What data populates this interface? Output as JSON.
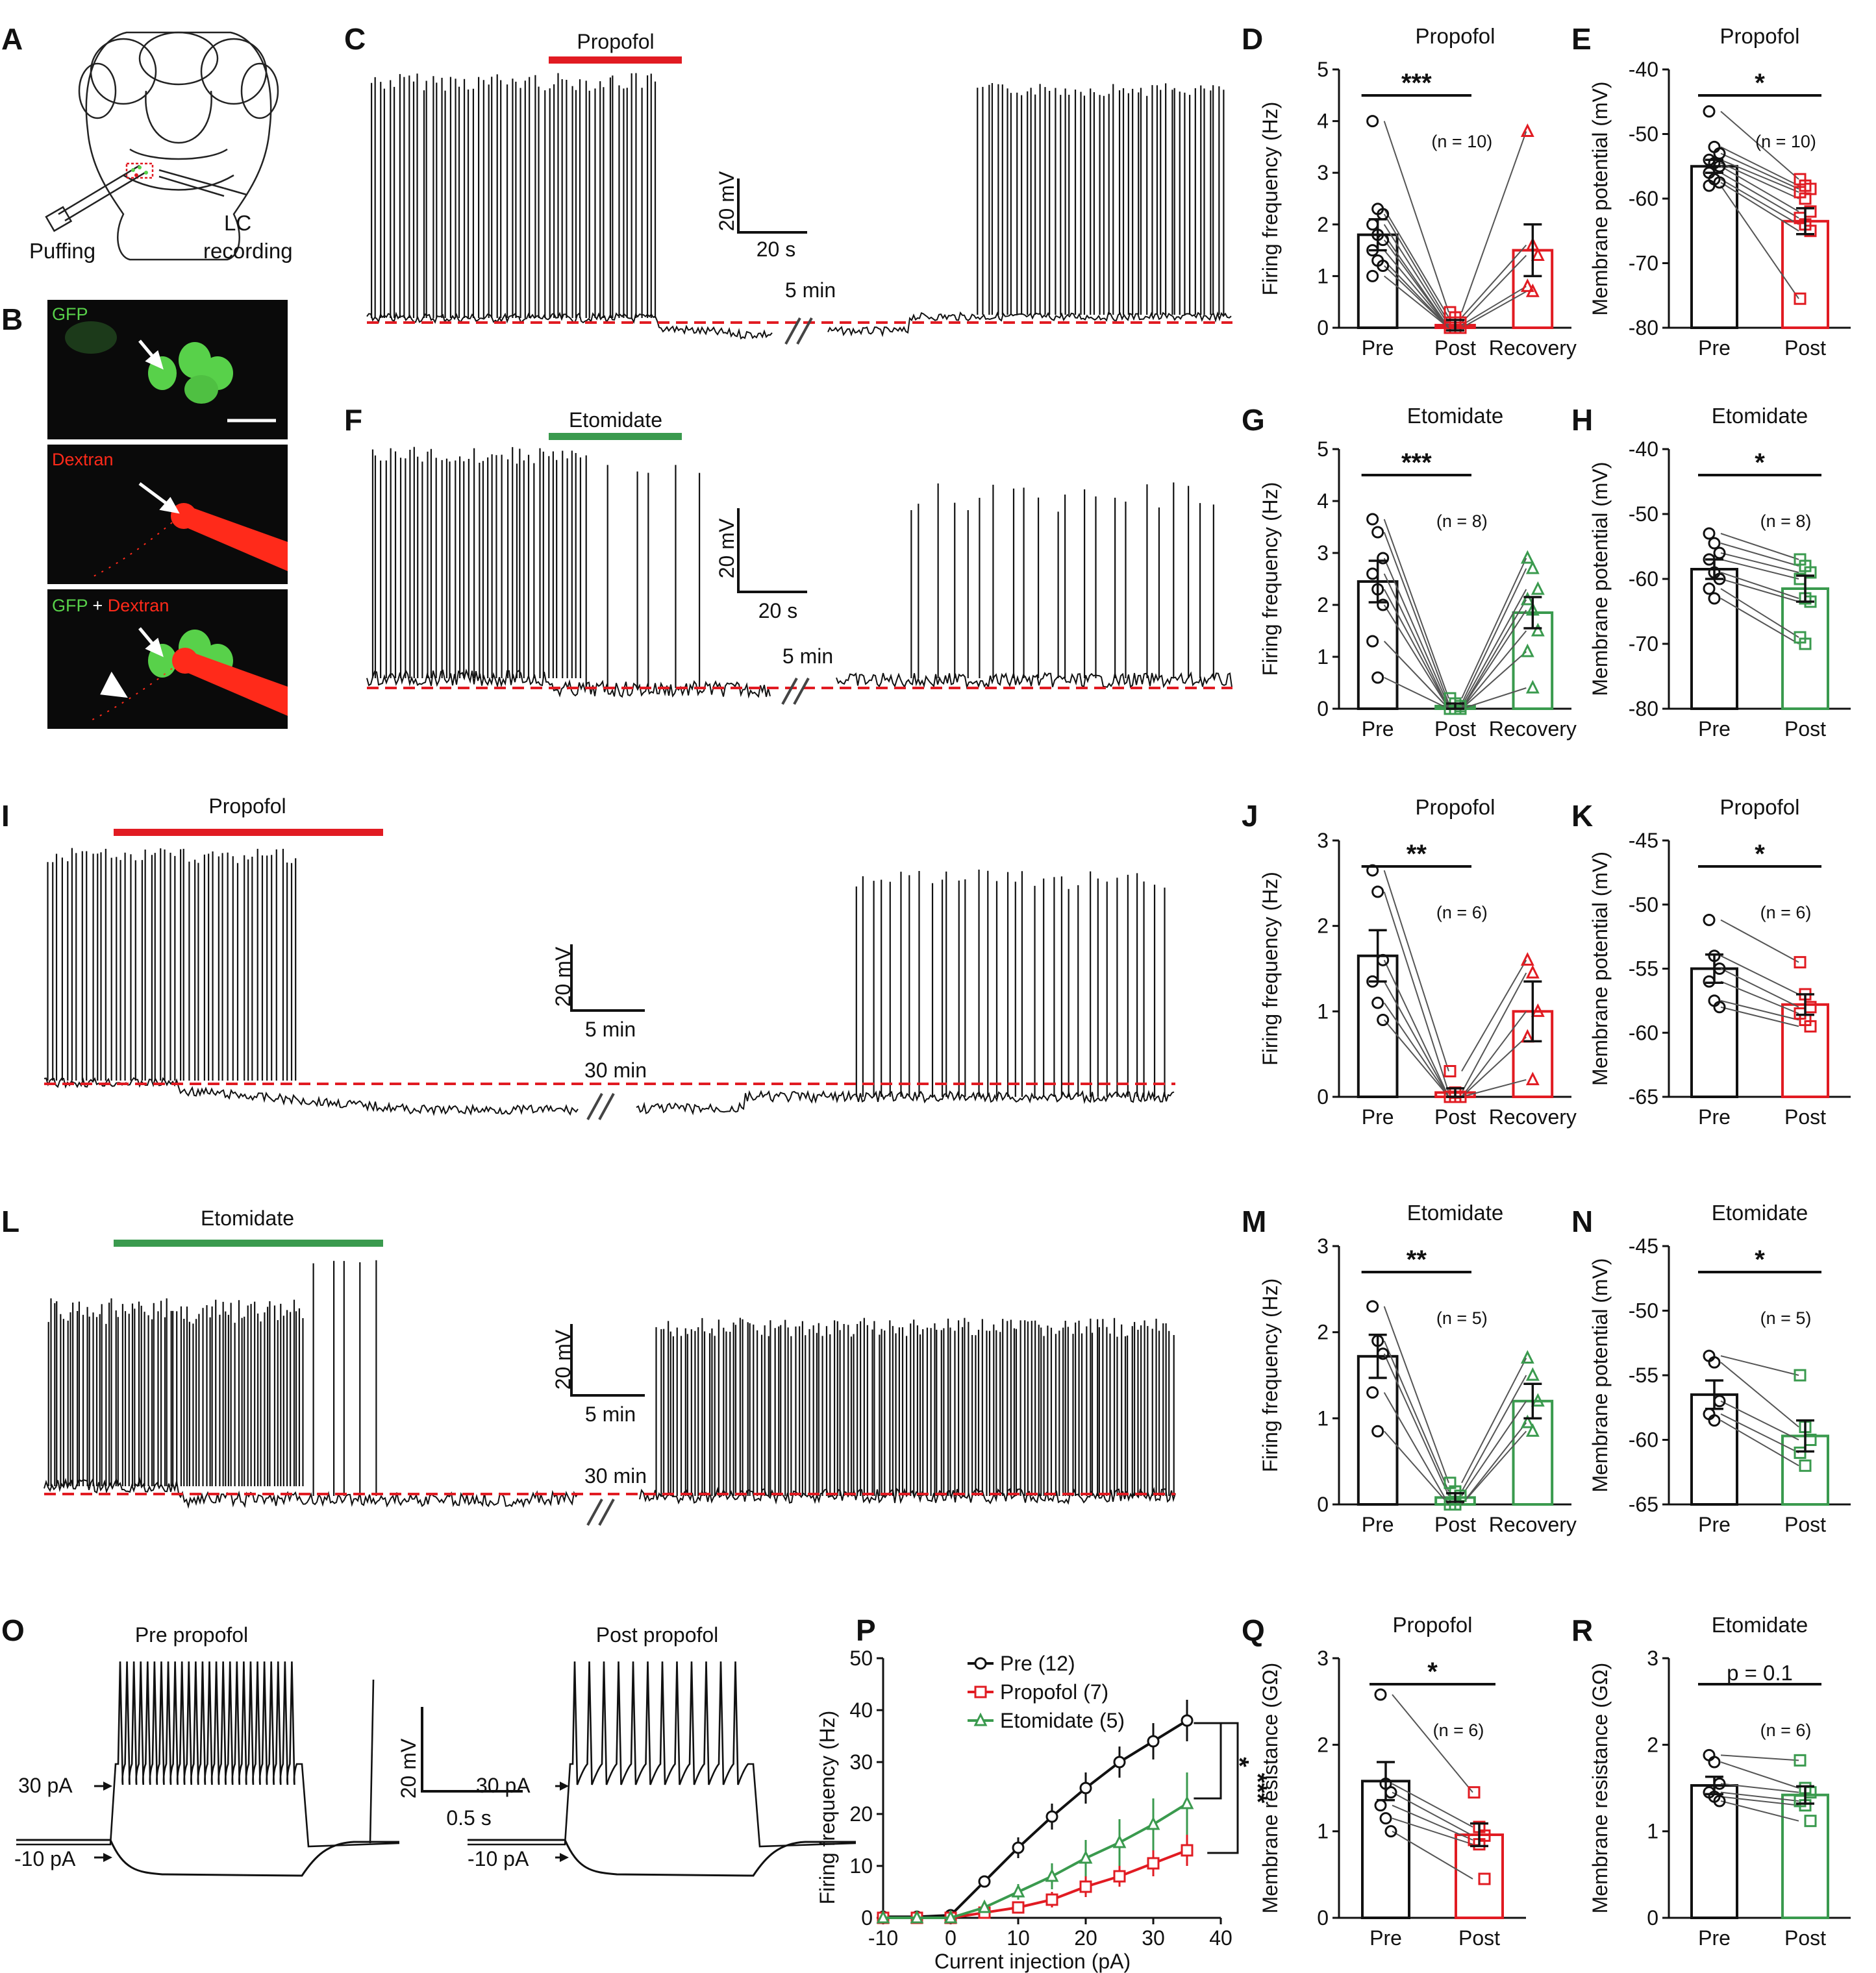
{
  "figure": {
    "colors": {
      "black": "#111111",
      "red": "#e11b22",
      "green": "#3a9a4e",
      "gfp": "#58d14a",
      "dextran": "#ff2a1a"
    },
    "panel_letters": [
      "A",
      "B",
      "C",
      "D",
      "E",
      "F",
      "G",
      "H",
      "I",
      "J",
      "K",
      "L",
      "M",
      "N",
      "O",
      "P",
      "Q",
      "R"
    ],
    "panel_A": {
      "puffing": "Puffing",
      "lc": "LC",
      "recording": "recording"
    },
    "panel_B": {
      "gfp": "GFP",
      "dextran": "Dextran",
      "merge_gfp": "GFP",
      "merge_plus": " + ",
      "merge_dextran": "Dextran"
    },
    "panel_C": {
      "drug": "Propofol",
      "scale_v": "20 mV",
      "scale_t": "20 s",
      "gap": "5 min"
    },
    "panel_F": {
      "drug": "Etomidate",
      "scale_v": "20 mV",
      "scale_t": "20 s",
      "gap": "5 min"
    },
    "panel_I": {
      "drug": "Propofol",
      "scale_v": "20 mV",
      "scale_t": "5 min",
      "gap": "30 min"
    },
    "panel_L": {
      "drug": "Etomidate",
      "scale_v": "20 mV",
      "scale_t": "5 min",
      "gap": "30 min"
    },
    "panel_O": {
      "pre": "Pre propofol",
      "post": "Post propofol",
      "scale_v": "20 mV",
      "scale_t": "0.5 s",
      "i30": "30 pA",
      "i_10": "-10 pA"
    }
  },
  "chart_data": [
    {
      "id": "D",
      "type": "bar",
      "title": "Propofol",
      "ylabel": "Firing frequency (Hz)",
      "categories": [
        "Pre",
        "Post",
        "Recovery"
      ],
      "ylim": [
        0,
        5
      ],
      "yticks": [
        "0",
        "1",
        "2",
        "3",
        "4",
        "5"
      ],
      "values": [
        1.8,
        0.05,
        1.5
      ],
      "errors": [
        0.3,
        0.1,
        0.5
      ],
      "colors": [
        "#111111",
        "#e11b22",
        "#e11b22"
      ],
      "markers": [
        "circle",
        "square",
        "triangle"
      ],
      "significance": "***",
      "n_label": "(n = 10)",
      "points": [
        [
          4.0,
          2.3,
          2.2,
          2.0,
          1.8,
          1.7,
          1.5,
          1.3,
          1.2,
          1.0
        ],
        [
          0.3,
          0.2,
          0.1,
          0.05,
          0.0,
          0.0,
          0.0,
          0.0,
          0.0,
          0.0
        ],
        [
          3.8,
          1.6,
          1.4,
          0.8,
          0.7
        ]
      ]
    },
    {
      "id": "E",
      "type": "bar",
      "title": "Propofol",
      "ylabel": "Membrane potential (mV)",
      "categories": [
        "Pre",
        "Post"
      ],
      "ylim": [
        -80,
        -40
      ],
      "yticks": [
        "-80",
        "-70",
        "-60",
        "-50",
        "-40"
      ],
      "values": [
        -55,
        -63.5
      ],
      "errors": [
        1.0,
        2.0
      ],
      "colors": [
        "#111111",
        "#e11b22"
      ],
      "markers": [
        "circle",
        "square"
      ],
      "significance": "*",
      "n_label": "(n = 10)",
      "points": [
        [
          -46.5,
          -52,
          -53,
          -54,
          -54.5,
          -55,
          -56,
          -57,
          -57.5,
          -58
        ],
        [
          -57,
          -58,
          -58.5,
          -59,
          -60,
          -62,
          -63,
          -64,
          -65,
          -75.5
        ]
      ]
    },
    {
      "id": "G",
      "type": "bar",
      "title": "Etomidate",
      "ylabel": "Firing frequency (Hz)",
      "categories": [
        "Pre",
        "Post",
        "Recovery"
      ],
      "ylim": [
        0,
        5
      ],
      "yticks": [
        "0",
        "1",
        "2",
        "3",
        "4",
        "5"
      ],
      "values": [
        2.45,
        0.05,
        1.85
      ],
      "errors": [
        0.4,
        0.05,
        0.3
      ],
      "colors": [
        "#111111",
        "#3a9a4e",
        "#3a9a4e"
      ],
      "markers": [
        "circle",
        "square",
        "triangle"
      ],
      "significance": "***",
      "n_label": "(n = 8)",
      "points": [
        [
          3.65,
          3.4,
          2.9,
          2.6,
          2.3,
          2.0,
          1.3,
          0.6
        ],
        [
          0.2,
          0.1,
          0.05,
          0.0,
          0.0,
          0.0,
          0.0,
          0.0
        ],
        [
          2.9,
          2.7,
          2.3,
          2.1,
          1.9,
          1.5,
          1.1,
          0.4
        ]
      ]
    },
    {
      "id": "H",
      "type": "bar",
      "title": "Etomidate",
      "ylabel": "Membrane potential (mV)",
      "categories": [
        "Pre",
        "Post"
      ],
      "ylim": [
        -80,
        -40
      ],
      "yticks": [
        "-80",
        "-70",
        "-60",
        "-50",
        "-40"
      ],
      "values": [
        -58.5,
        -61.5
      ],
      "errors": [
        1.5,
        2.0
      ],
      "colors": [
        "#111111",
        "#3a9a4e"
      ],
      "markers": [
        "circle",
        "square"
      ],
      "significance": "*",
      "n_label": "(n = 8)",
      "points": [
        [
          -53,
          -54.5,
          -56,
          -57,
          -59,
          -60,
          -61.5,
          -63
        ],
        [
          -57,
          -58,
          -59,
          -60,
          -63,
          -63.5,
          -69,
          -70
        ]
      ]
    },
    {
      "id": "J",
      "type": "bar",
      "title": "Propofol",
      "ylabel": "Firing frequency (Hz)",
      "categories": [
        "Pre",
        "Post",
        "Recovery"
      ],
      "ylim": [
        0,
        3
      ],
      "yticks": [
        "0",
        "1",
        "2",
        "3"
      ],
      "values": [
        1.65,
        0.05,
        1.0
      ],
      "errors": [
        0.3,
        0.05,
        0.35
      ],
      "colors": [
        "#111111",
        "#e11b22",
        "#e11b22"
      ],
      "markers": [
        "circle",
        "square",
        "triangle"
      ],
      "significance": "**",
      "n_label": "(n = 6)",
      "points": [
        [
          2.65,
          2.4,
          1.6,
          1.35,
          1.1,
          0.9
        ],
        [
          0.3,
          0.05,
          0.0,
          0.0,
          0.0,
          0.0
        ],
        [
          1.6,
          1.45,
          1.0,
          0.7,
          0.2
        ]
      ]
    },
    {
      "id": "K",
      "type": "bar",
      "title": "Propofol",
      "ylabel": "Membrane potential (mV)",
      "categories": [
        "Pre",
        "Post"
      ],
      "ylim": [
        -65,
        -45
      ],
      "yticks": [
        "-65",
        "-60",
        "-55",
        "-50",
        "-45"
      ],
      "values": [
        -55,
        -57.8
      ],
      "errors": [
        1.1,
        0.8
      ],
      "colors": [
        "#111111",
        "#e11b22"
      ],
      "markers": [
        "circle",
        "square"
      ],
      "significance": "*",
      "n_label": "(n = 6)",
      "points": [
        [
          -51.2,
          -54,
          -55,
          -56,
          -57.5,
          -58
        ],
        [
          -54.5,
          -57,
          -58,
          -58.5,
          -59,
          -59.5
        ]
      ]
    },
    {
      "id": "M",
      "type": "bar",
      "title": "Etomidate",
      "ylabel": "Firing frequency (Hz)",
      "categories": [
        "Pre",
        "Post",
        "Recovery"
      ],
      "ylim": [
        0,
        3
      ],
      "yticks": [
        "0",
        "1",
        "2",
        "3"
      ],
      "values": [
        1.72,
        0.08,
        1.2
      ],
      "errors": [
        0.25,
        0.05,
        0.2
      ],
      "colors": [
        "#111111",
        "#3a9a4e",
        "#3a9a4e"
      ],
      "markers": [
        "circle",
        "square",
        "triangle"
      ],
      "significance": "**",
      "n_label": "(n = 5)",
      "points": [
        [
          2.3,
          1.9,
          1.75,
          1.3,
          0.85
        ],
        [
          0.25,
          0.15,
          0.1,
          0.0,
          0.0
        ],
        [
          1.7,
          1.5,
          1.2,
          0.95,
          0.85
        ]
      ]
    },
    {
      "id": "N",
      "type": "bar",
      "title": "Etomidate",
      "ylabel": "Membrane potential (mV)",
      "categories": [
        "Pre",
        "Post"
      ],
      "ylim": [
        -65,
        -45
      ],
      "yticks": [
        "-65",
        "-60",
        "-55",
        "-50",
        "-45"
      ],
      "values": [
        -56.5,
        -59.7
      ],
      "errors": [
        1.1,
        1.2
      ],
      "colors": [
        "#111111",
        "#3a9a4e"
      ],
      "markers": [
        "circle",
        "square"
      ],
      "significance": "*",
      "n_label": "(n = 5)",
      "points": [
        [
          -53.5,
          -54,
          -57,
          -58,
          -58.5
        ],
        [
          -55,
          -59,
          -60,
          -61,
          -62
        ]
      ]
    },
    {
      "id": "Q",
      "type": "bar",
      "title": "Propofol",
      "ylabel": "Membrane resistance (GΩ)",
      "categories": [
        "Pre",
        "Post"
      ],
      "ylim": [
        0,
        3
      ],
      "yticks": [
        "0",
        "1",
        "2",
        "3"
      ],
      "values": [
        1.58,
        0.96
      ],
      "errors": [
        0.22,
        0.13
      ],
      "colors": [
        "#111111",
        "#e11b22"
      ],
      "markers": [
        "circle",
        "square"
      ],
      "significance": "*",
      "n_label": "(n = 6)",
      "points": [
        [
          2.58,
          1.55,
          1.45,
          1.3,
          1.15,
          1.0
        ],
        [
          1.45,
          1.05,
          0.95,
          0.9,
          0.85,
          0.45
        ]
      ]
    },
    {
      "id": "R",
      "type": "bar",
      "title": "Etomidate",
      "ylabel": "Membrane resistance (GΩ)",
      "categories": [
        "Pre",
        "Post"
      ],
      "ylim": [
        0,
        3
      ],
      "yticks": [
        "0",
        "1",
        "2",
        "3"
      ],
      "values": [
        1.53,
        1.42
      ],
      "errors": [
        0.1,
        0.1
      ],
      "colors": [
        "#111111",
        "#3a9a4e"
      ],
      "markers": [
        "circle",
        "square"
      ],
      "significance": "p = 0.1",
      "n_label": "(n = 6)",
      "points": [
        [
          1.88,
          1.8,
          1.55,
          1.45,
          1.4,
          1.35
        ],
        [
          1.82,
          1.5,
          1.45,
          1.35,
          1.3,
          1.12
        ]
      ]
    },
    {
      "id": "P",
      "type": "line",
      "xlabel": "Current injection (pA)",
      "ylabel": "Firing frequency (Hz)",
      "xlim": [
        -10,
        40
      ],
      "ylim": [
        0,
        50
      ],
      "xticks": [
        "-10",
        "0",
        "10",
        "20",
        "30",
        "40"
      ],
      "yticks": [
        "0",
        "10",
        "20",
        "30",
        "40",
        "50"
      ],
      "x": [
        -10,
        -5,
        0,
        5,
        10,
        15,
        20,
        25,
        30,
        35
      ],
      "series": [
        {
          "name": "Pre (12)",
          "color": "#111111",
          "marker": "circle",
          "values": [
            0.2,
            0.2,
            0.5,
            7,
            13.5,
            19.5,
            25,
            30,
            34,
            38
          ],
          "errors": [
            0.5,
            0.5,
            0.5,
            1,
            2,
            2.5,
            3,
            3,
            3.5,
            4
          ]
        },
        {
          "name": "Propofol (7)",
          "color": "#e11b22",
          "marker": "square",
          "values": [
            0,
            0,
            0,
            1,
            2,
            3.5,
            6,
            8,
            10.5,
            13
          ],
          "errors": [
            0,
            0,
            0,
            0.5,
            1,
            1.5,
            2,
            2,
            2.5,
            3
          ]
        },
        {
          "name": "Etomidate (5)",
          "color": "#3a9a4e",
          "marker": "triangle",
          "values": [
            0,
            0,
            0,
            2,
            5,
            8,
            11.5,
            14.5,
            18,
            22
          ],
          "errors": [
            0,
            0,
            0,
            1,
            1.5,
            2.5,
            3.5,
            4.5,
            5,
            6
          ]
        }
      ],
      "significance": [
        "*",
        "***"
      ]
    }
  ]
}
